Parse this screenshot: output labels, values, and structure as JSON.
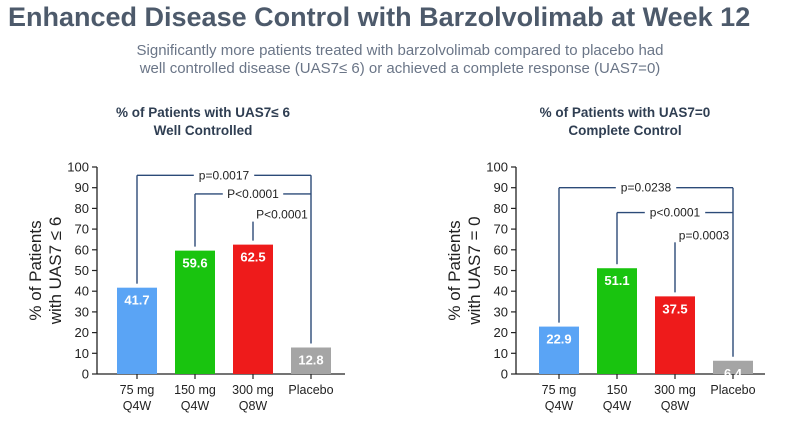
{
  "title": "Enhanced Disease Control with Barzolvolimab at Week 12",
  "subtitle_line1": "Significantly more patients treated with barzolvolimab compared to placebo had",
  "subtitle_line2": "well controlled disease (UAS7≤ 6) or achieved a complete response (UAS7=0)",
  "chart_data": [
    {
      "type": "bar",
      "title": [
        "% of Patients with UAS7≤ 6",
        "Well Controlled"
      ],
      "ylabel": [
        "% of Patients",
        "with UAS7 ≤ 6"
      ],
      "xlabel": "",
      "ylim": [
        0,
        100
      ],
      "yticks": [
        0,
        10,
        20,
        30,
        40,
        50,
        60,
        70,
        80,
        90,
        100
      ],
      "categories": [
        [
          "75 mg",
          "Q4W"
        ],
        [
          "150 mg",
          "Q4W"
        ],
        [
          "300 mg",
          "Q8W"
        ],
        [
          "Placebo"
        ]
      ],
      "values": [
        41.7,
        59.6,
        62.5,
        12.8
      ],
      "value_labels": [
        "41.7",
        "59.6",
        "62.5",
        "12.8"
      ],
      "colors": [
        "#5aa4f5",
        "#19c40f",
        "#ee1b1b",
        "#a5a5a5"
      ],
      "comparisons": [
        {
          "from": 0,
          "to": 3,
          "label": "p=0.0017",
          "level": 96
        },
        {
          "from": 1,
          "to": 3,
          "label": "P<0.0001",
          "level": 87
        },
        {
          "from": 2,
          "to": 3,
          "label": "P<0.0001",
          "level": 77
        }
      ]
    },
    {
      "type": "bar",
      "title": [
        "% of Patients with UAS7=0",
        "Complete Control"
      ],
      "ylabel": [
        "% of Patients",
        "with UAS7 = 0"
      ],
      "xlabel": "",
      "ylim": [
        0,
        100
      ],
      "yticks": [
        0,
        10,
        20,
        30,
        40,
        50,
        60,
        70,
        80,
        90,
        100
      ],
      "categories": [
        [
          "75 mg",
          "Q4W"
        ],
        [
          "150",
          "Q4W"
        ],
        [
          "300 mg",
          "Q8W"
        ],
        [
          "Placebo"
        ]
      ],
      "values": [
        22.9,
        51.1,
        37.5,
        6.4
      ],
      "value_labels": [
        "22.9",
        "51.1",
        "37.5",
        "6.4"
      ],
      "colors": [
        "#5aa4f5",
        "#19c40f",
        "#ee1b1b",
        "#a5a5a5"
      ],
      "comparisons": [
        {
          "from": 0,
          "to": 3,
          "label": "p=0.0238",
          "level": 90
        },
        {
          "from": 1,
          "to": 3,
          "label": "p<0.0001",
          "level": 78
        },
        {
          "from": 2,
          "to": 3,
          "label": "p=0.0003",
          "level": 67
        }
      ]
    }
  ]
}
